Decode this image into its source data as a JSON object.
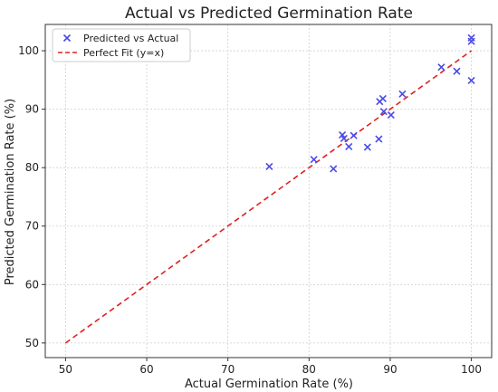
{
  "chart_data": {
    "type": "scatter",
    "title": "Actual vs Predicted Germination Rate",
    "xlabel": "Actual Germination Rate (%)",
    "ylabel": "Predicted Germination Rate (%)",
    "xlim": [
      47.5,
      102.5
    ],
    "ylim": [
      47.5,
      104.5
    ],
    "xticks": [
      50,
      60,
      70,
      80,
      90,
      100
    ],
    "yticks": [
      50,
      60,
      70,
      80,
      90,
      100
    ],
    "grid": true,
    "legend_position": "top-left",
    "series": [
      {
        "name": "Predicted vs Actual",
        "marker": "x",
        "color": "#4a4ae6",
        "points": [
          {
            "x": 75.1,
            "y": 80.2
          },
          {
            "x": 80.6,
            "y": 81.4
          },
          {
            "x": 83.0,
            "y": 79.8
          },
          {
            "x": 84.1,
            "y": 85.6
          },
          {
            "x": 84.3,
            "y": 85.0
          },
          {
            "x": 84.9,
            "y": 83.6
          },
          {
            "x": 85.5,
            "y": 85.5
          },
          {
            "x": 87.2,
            "y": 83.5
          },
          {
            "x": 88.6,
            "y": 84.9
          },
          {
            "x": 88.7,
            "y": 91.3
          },
          {
            "x": 89.1,
            "y": 91.8
          },
          {
            "x": 89.2,
            "y": 89.6
          },
          {
            "x": 90.1,
            "y": 89.0
          },
          {
            "x": 91.5,
            "y": 92.6
          },
          {
            "x": 96.3,
            "y": 97.2
          },
          {
            "x": 98.2,
            "y": 96.5
          },
          {
            "x": 100.0,
            "y": 102.2
          },
          {
            "x": 100.0,
            "y": 101.6
          },
          {
            "x": 100.0,
            "y": 94.9
          }
        ]
      },
      {
        "name": "Perfect Fit (y=x)",
        "line_style": "dashed",
        "color": "#e02020",
        "points": [
          {
            "x": 50,
            "y": 50
          },
          {
            "x": 100,
            "y": 100
          }
        ]
      }
    ]
  }
}
